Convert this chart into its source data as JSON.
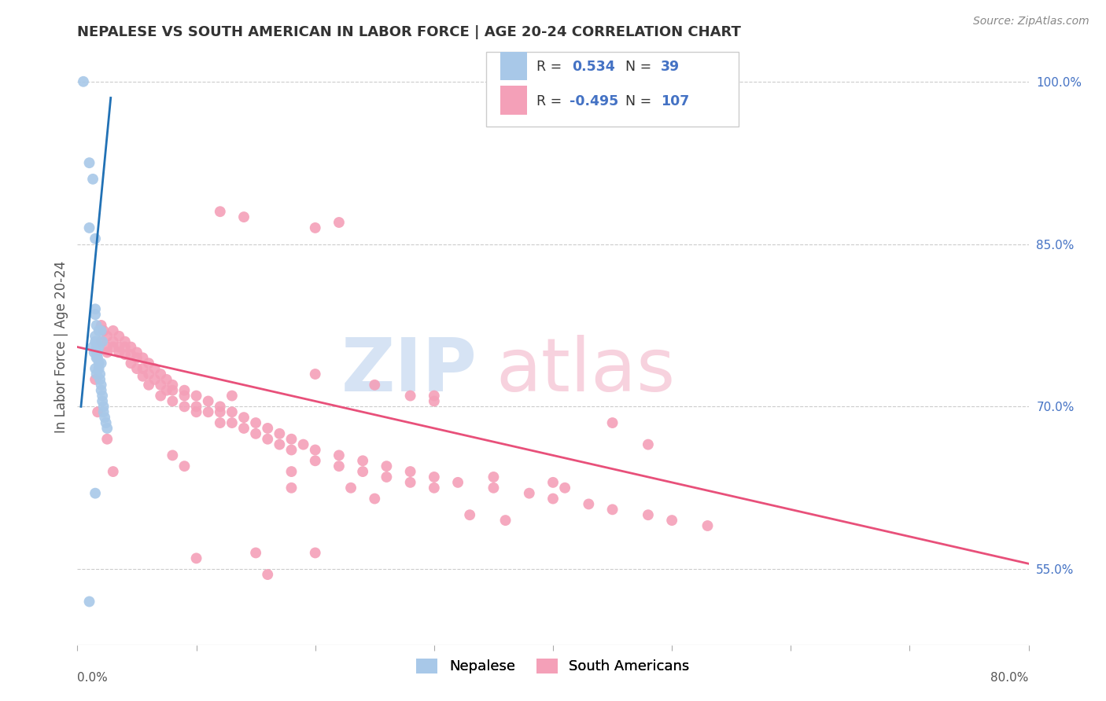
{
  "title": "NEPALESE VS SOUTH AMERICAN IN LABOR FORCE | AGE 20-24 CORRELATION CHART",
  "source": "Source: ZipAtlas.com",
  "ylabel": "In Labor Force | Age 20-24",
  "ytick_labels": [
    "55.0%",
    "70.0%",
    "85.0%",
    "100.0%"
  ],
  "ytick_values": [
    0.55,
    0.7,
    0.85,
    1.0
  ],
  "blue_color": "#a8c8e8",
  "pink_color": "#f4a0b8",
  "blue_line_color": "#2171b5",
  "pink_line_color": "#e8507a",
  "right_tick_color": "#4472C4",
  "nepalese_points": [
    [
      0.005,
      1.0
    ],
    [
      0.01,
      0.925
    ],
    [
      0.013,
      0.91
    ],
    [
      0.01,
      0.865
    ],
    [
      0.015,
      0.855
    ],
    [
      0.015,
      0.79
    ],
    [
      0.015,
      0.785
    ],
    [
      0.016,
      0.775
    ],
    [
      0.018,
      0.77
    ],
    [
      0.015,
      0.765
    ],
    [
      0.016,
      0.76
    ],
    [
      0.016,
      0.755
    ],
    [
      0.017,
      0.75
    ],
    [
      0.017,
      0.745
    ],
    [
      0.018,
      0.74
    ],
    [
      0.018,
      0.735
    ],
    [
      0.019,
      0.73
    ],
    [
      0.019,
      0.725
    ],
    [
      0.02,
      0.72
    ],
    [
      0.02,
      0.715
    ],
    [
      0.021,
      0.71
    ],
    [
      0.021,
      0.705
    ],
    [
      0.022,
      0.7
    ],
    [
      0.022,
      0.695
    ],
    [
      0.023,
      0.69
    ],
    [
      0.024,
      0.685
    ],
    [
      0.025,
      0.68
    ],
    [
      0.02,
      0.77
    ],
    [
      0.021,
      0.76
    ],
    [
      0.016,
      0.73
    ],
    [
      0.013,
      0.755
    ],
    [
      0.014,
      0.75
    ],
    [
      0.015,
      0.76
    ],
    [
      0.018,
      0.755
    ],
    [
      0.02,
      0.74
    ],
    [
      0.015,
      0.62
    ],
    [
      0.01,
      0.52
    ],
    [
      0.016,
      0.75
    ],
    [
      0.016,
      0.745
    ],
    [
      0.015,
      0.735
    ]
  ],
  "sa_points": [
    [
      0.02,
      0.775
    ],
    [
      0.02,
      0.76
    ],
    [
      0.022,
      0.77
    ],
    [
      0.025,
      0.765
    ],
    [
      0.025,
      0.755
    ],
    [
      0.025,
      0.75
    ],
    [
      0.03,
      0.77
    ],
    [
      0.03,
      0.76
    ],
    [
      0.03,
      0.755
    ],
    [
      0.035,
      0.765
    ],
    [
      0.035,
      0.755
    ],
    [
      0.035,
      0.75
    ],
    [
      0.04,
      0.76
    ],
    [
      0.04,
      0.755
    ],
    [
      0.04,
      0.748
    ],
    [
      0.045,
      0.755
    ],
    [
      0.045,
      0.748
    ],
    [
      0.045,
      0.74
    ],
    [
      0.05,
      0.75
    ],
    [
      0.05,
      0.745
    ],
    [
      0.05,
      0.735
    ],
    [
      0.055,
      0.745
    ],
    [
      0.055,
      0.735
    ],
    [
      0.055,
      0.728
    ],
    [
      0.06,
      0.74
    ],
    [
      0.06,
      0.73
    ],
    [
      0.06,
      0.72
    ],
    [
      0.065,
      0.735
    ],
    [
      0.065,
      0.725
    ],
    [
      0.07,
      0.73
    ],
    [
      0.07,
      0.72
    ],
    [
      0.07,
      0.71
    ],
    [
      0.075,
      0.725
    ],
    [
      0.075,
      0.715
    ],
    [
      0.08,
      0.72
    ],
    [
      0.08,
      0.715
    ],
    [
      0.08,
      0.705
    ],
    [
      0.09,
      0.715
    ],
    [
      0.09,
      0.71
    ],
    [
      0.09,
      0.7
    ],
    [
      0.1,
      0.71
    ],
    [
      0.1,
      0.7
    ],
    [
      0.1,
      0.695
    ],
    [
      0.11,
      0.705
    ],
    [
      0.11,
      0.695
    ],
    [
      0.12,
      0.7
    ],
    [
      0.12,
      0.695
    ],
    [
      0.12,
      0.685
    ],
    [
      0.13,
      0.695
    ],
    [
      0.13,
      0.685
    ],
    [
      0.14,
      0.69
    ],
    [
      0.14,
      0.68
    ],
    [
      0.15,
      0.685
    ],
    [
      0.15,
      0.675
    ],
    [
      0.16,
      0.68
    ],
    [
      0.16,
      0.67
    ],
    [
      0.17,
      0.675
    ],
    [
      0.17,
      0.665
    ],
    [
      0.18,
      0.67
    ],
    [
      0.18,
      0.66
    ],
    [
      0.19,
      0.665
    ],
    [
      0.2,
      0.66
    ],
    [
      0.2,
      0.65
    ],
    [
      0.22,
      0.655
    ],
    [
      0.22,
      0.645
    ],
    [
      0.24,
      0.65
    ],
    [
      0.24,
      0.64
    ],
    [
      0.26,
      0.645
    ],
    [
      0.26,
      0.635
    ],
    [
      0.28,
      0.64
    ],
    [
      0.3,
      0.635
    ],
    [
      0.3,
      0.625
    ],
    [
      0.32,
      0.63
    ],
    [
      0.35,
      0.625
    ],
    [
      0.38,
      0.62
    ],
    [
      0.4,
      0.615
    ],
    [
      0.43,
      0.61
    ],
    [
      0.45,
      0.605
    ],
    [
      0.48,
      0.6
    ],
    [
      0.5,
      0.595
    ],
    [
      0.53,
      0.59
    ],
    [
      0.12,
      0.88
    ],
    [
      0.14,
      0.875
    ],
    [
      0.2,
      0.865
    ],
    [
      0.22,
      0.87
    ],
    [
      0.3,
      0.71
    ],
    [
      0.3,
      0.705
    ],
    [
      0.015,
      0.725
    ],
    [
      0.017,
      0.695
    ],
    [
      0.025,
      0.67
    ],
    [
      0.03,
      0.64
    ],
    [
      0.1,
      0.56
    ],
    [
      0.15,
      0.565
    ],
    [
      0.16,
      0.545
    ],
    [
      0.2,
      0.565
    ],
    [
      0.13,
      0.71
    ],
    [
      0.28,
      0.71
    ],
    [
      0.35,
      0.635
    ],
    [
      0.28,
      0.63
    ],
    [
      0.23,
      0.625
    ],
    [
      0.25,
      0.615
    ],
    [
      0.33,
      0.6
    ],
    [
      0.36,
      0.595
    ],
    [
      0.4,
      0.63
    ],
    [
      0.41,
      0.625
    ],
    [
      0.2,
      0.73
    ],
    [
      0.25,
      0.72
    ],
    [
      0.18,
      0.64
    ],
    [
      0.18,
      0.625
    ],
    [
      0.45,
      0.685
    ],
    [
      0.48,
      0.665
    ],
    [
      0.08,
      0.655
    ],
    [
      0.09,
      0.645
    ]
  ],
  "xlim": [
    0.0,
    0.8
  ],
  "ylim": [
    0.48,
    1.03
  ],
  "pink_line_x": [
    0.0,
    0.8
  ],
  "pink_line_y": [
    0.755,
    0.555
  ],
  "blue_line_x": [
    0.003,
    0.028
  ],
  "blue_line_y": [
    0.7,
    0.985
  ]
}
